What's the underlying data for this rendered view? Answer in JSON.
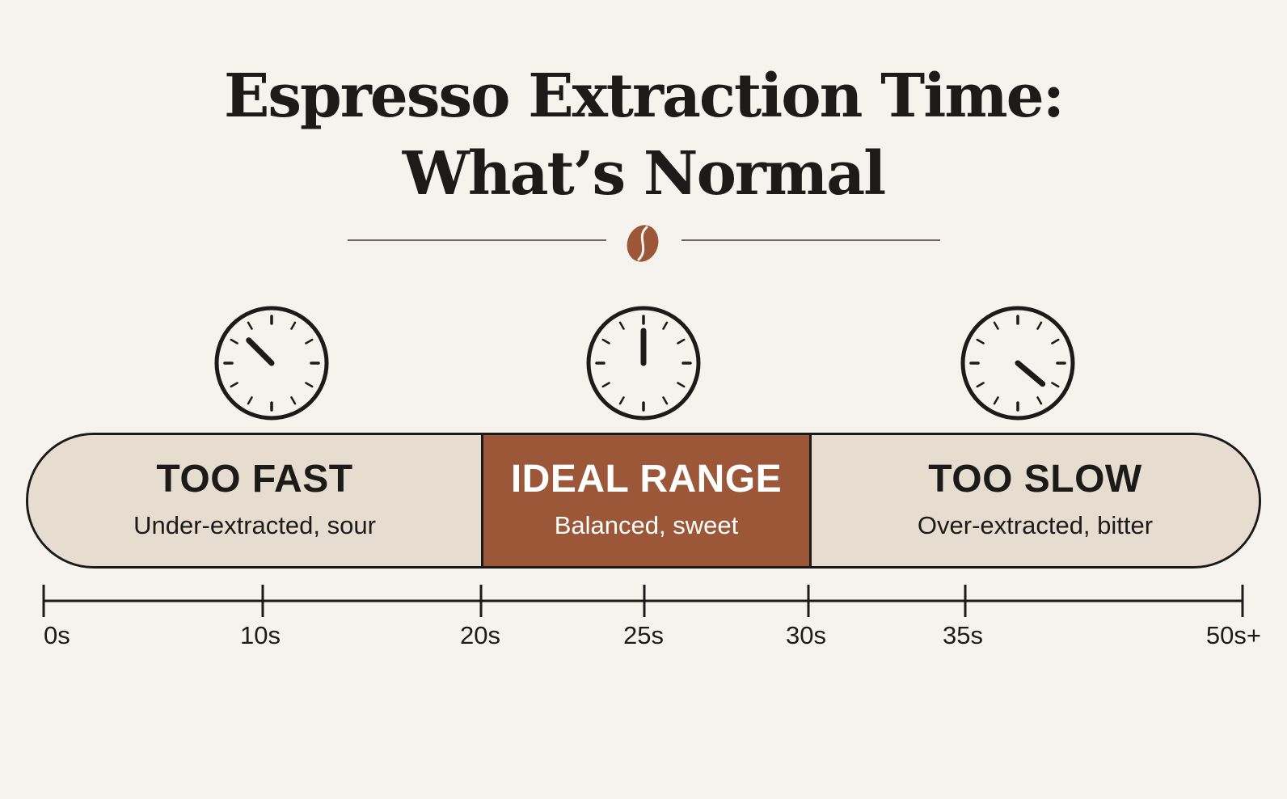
{
  "title_line1": "Espresso Extraction Time:",
  "title_line2": "What’s Normal",
  "zones": [
    {
      "label": "TOO FAST",
      "description": "Under-extracted, sour"
    },
    {
      "label": "IDEAL RANGE",
      "description": "Balanced, sweet"
    },
    {
      "label": "TOO SLOW",
      "description": "Over-extracted, bitter"
    }
  ],
  "axis_ticks": [
    "0s",
    "10s",
    "20s",
    "25s",
    "30s",
    "35s",
    "50s+"
  ],
  "colors": {
    "background": "#f6f3ee",
    "neutral_zone": "#e6dcd0",
    "ideal_zone": "#9b5737",
    "coffee_bean": "#9b5737",
    "ink": "#1d1b19"
  },
  "icons": [
    "coffee-bean-icon",
    "clock-icon"
  ]
}
